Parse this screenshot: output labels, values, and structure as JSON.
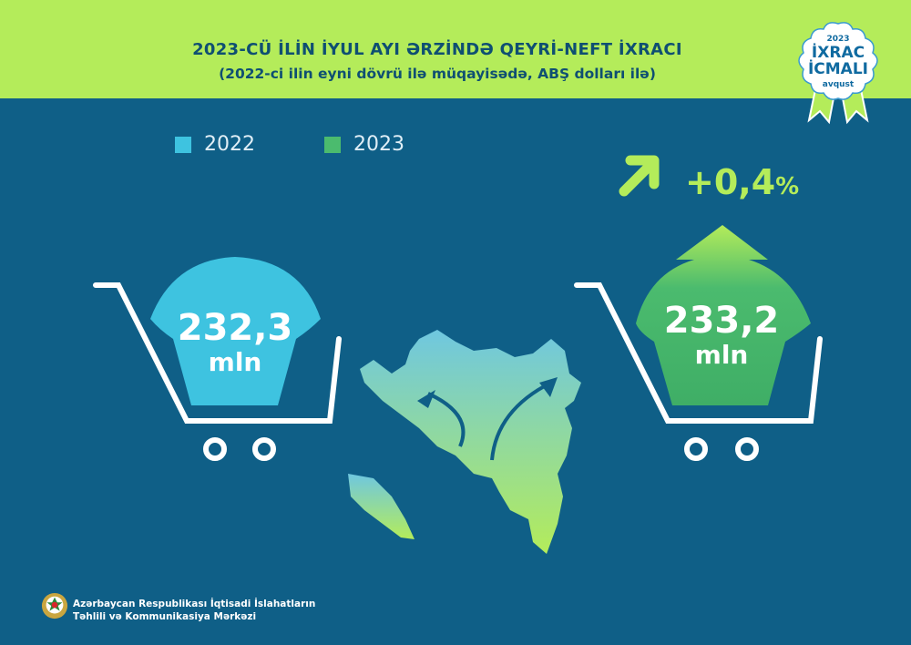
{
  "header": {
    "title": "2023-CÜ İLİN İYUL AYI ƏRZİNDƏ QEYRİ-NEFT İXRACI",
    "subtitle": "(2022-ci ilin eyni dövrü ilə müqayisədə, ABŞ dolları ilə)"
  },
  "badge": {
    "year": "2023",
    "line1": "İXRAC",
    "line2": "İCMALI",
    "month": "avqust"
  },
  "legend": [
    {
      "label": "2022",
      "color": "#3ec3e0"
    },
    {
      "label": "2023",
      "color": "#4bbb6e"
    }
  ],
  "change": {
    "value": "+0,4",
    "unit": "%",
    "icon": "arrow-up-right-icon"
  },
  "values": [
    {
      "year": "2022",
      "value": "232,3",
      "unit": "mln"
    },
    {
      "year": "2023",
      "value": "233,2",
      "unit": "mln"
    }
  ],
  "footer": {
    "line1": "Azərbaycan Respublikası İqtisadi İslahatların",
    "line2": "Təhlili və Kommunikasiya Mərkəzi"
  },
  "colors": {
    "header": "#b4ec5a",
    "background": "#0f5f87",
    "accent_2022": "#3ec3e0",
    "accent_2023": "#4bbb6e"
  }
}
